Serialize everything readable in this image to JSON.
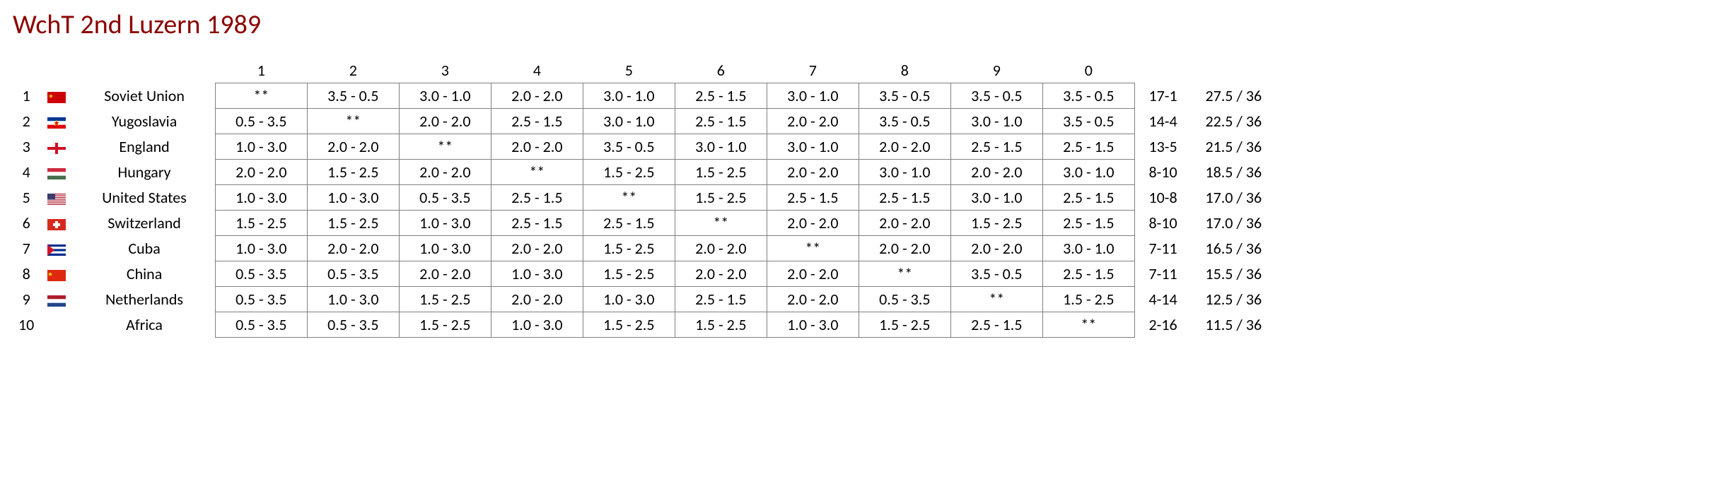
{
  "title": "WchT 2nd Luzern   1989",
  "title_color": "#8b0000",
  "diagonal_marker": "**",
  "column_headers": [
    "1",
    "2",
    "3",
    "4",
    "5",
    "6",
    "7",
    "8",
    "9",
    "0"
  ],
  "teams": [
    {
      "rank": "1",
      "flag": "soviet",
      "name": "Soviet Union",
      "results": [
        "**",
        "3.5 - 0.5",
        "3.0 - 1.0",
        "2.0 - 2.0",
        "3.0 - 1.0",
        "2.5 - 1.5",
        "3.0 - 1.0",
        "3.5 - 0.5",
        "3.5 - 0.5",
        "3.5 - 0.5"
      ],
      "record": "17-1",
      "score": "27.5 / 36"
    },
    {
      "rank": "2",
      "flag": "yugoslavia",
      "name": "Yugoslavia",
      "results": [
        "0.5 - 3.5",
        "**",
        "2.0 - 2.0",
        "2.5 - 1.5",
        "3.0 - 1.0",
        "2.5 - 1.5",
        "2.0 - 2.0",
        "3.5 - 0.5",
        "3.0 - 1.0",
        "3.5 - 0.5"
      ],
      "record": "14-4",
      "score": "22.5 / 36"
    },
    {
      "rank": "3",
      "flag": "england",
      "name": "England",
      "results": [
        "1.0 - 3.0",
        "2.0 - 2.0",
        "**",
        "2.0 - 2.0",
        "3.5 - 0.5",
        "3.0 - 1.0",
        "3.0 - 1.0",
        "2.0 - 2.0",
        "2.5 - 1.5",
        "2.5 - 1.5"
      ],
      "record": "13-5",
      "score": "21.5 / 36"
    },
    {
      "rank": "4",
      "flag": "hungary",
      "name": "Hungary",
      "results": [
        "2.0 - 2.0",
        "1.5 - 2.5",
        "2.0 - 2.0",
        "**",
        "1.5 - 2.5",
        "1.5 - 2.5",
        "2.0 - 2.0",
        "3.0 - 1.0",
        "2.0 - 2.0",
        "3.0 - 1.0"
      ],
      "record": "8-10",
      "score": "18.5 / 36"
    },
    {
      "rank": "5",
      "flag": "usa",
      "name": "United States",
      "results": [
        "1.0 - 3.0",
        "1.0 - 3.0",
        "0.5 - 3.5",
        "2.5 - 1.5",
        "**",
        "1.5 - 2.5",
        "2.5 - 1.5",
        "2.5 - 1.5",
        "3.0 - 1.0",
        "2.5 - 1.5"
      ],
      "record": "10-8",
      "score": "17.0 / 36"
    },
    {
      "rank": "6",
      "flag": "switzerland",
      "name": "Switzerland",
      "results": [
        "1.5 - 2.5",
        "1.5 - 2.5",
        "1.0 - 3.0",
        "2.5 - 1.5",
        "2.5 - 1.5",
        "**",
        "2.0 - 2.0",
        "2.0 - 2.0",
        "1.5 - 2.5",
        "2.5 - 1.5"
      ],
      "record": "8-10",
      "score": "17.0 / 36"
    },
    {
      "rank": "7",
      "flag": "cuba",
      "name": "Cuba",
      "results": [
        "1.0 - 3.0",
        "2.0 - 2.0",
        "1.0 - 3.0",
        "2.0 - 2.0",
        "1.5 - 2.5",
        "2.0 - 2.0",
        "**",
        "2.0 - 2.0",
        "2.0 - 2.0",
        "3.0 - 1.0"
      ],
      "record": "7-11",
      "score": "16.5 / 36"
    },
    {
      "rank": "8",
      "flag": "china",
      "name": "China",
      "results": [
        "0.5 - 3.5",
        "0.5 - 3.5",
        "2.0 - 2.0",
        "1.0 - 3.0",
        "1.5 - 2.5",
        "2.0 - 2.0",
        "2.0 - 2.0",
        "**",
        "3.5 - 0.5",
        "2.5 - 1.5"
      ],
      "record": "7-11",
      "score": "15.5 / 36"
    },
    {
      "rank": "9",
      "flag": "netherlands",
      "name": "Netherlands",
      "results": [
        "0.5 - 3.5",
        "1.0 - 3.0",
        "1.5 - 2.5",
        "2.0 - 2.0",
        "1.0 - 3.0",
        "2.5 - 1.5",
        "2.0 - 2.0",
        "0.5 - 3.5",
        "**",
        "1.5 - 2.5"
      ],
      "record": "4-14",
      "score": "12.5 / 36"
    },
    {
      "rank": "10",
      "flag": "",
      "name": "Africa",
      "results": [
        "0.5 - 3.5",
        "0.5 - 3.5",
        "1.5 - 2.5",
        "1.0 - 3.0",
        "1.5 - 2.5",
        "1.5 - 2.5",
        "1.0 - 3.0",
        "1.5 - 2.5",
        "2.5 - 1.5",
        "**"
      ],
      "record": "2-16",
      "score": "11.5 / 36"
    }
  ],
  "flags": {
    "soviet": "<svg class='flag' viewBox='0 0 26 16'><rect width='26' height='16' fill='#cc0000'/><polygon points='5,3 6,5 8,5 6.5,6.5 7,8.5 5,7.5 3,8.5 3.5,6.5 2,5 4,5' fill='#ffcc00'/></svg>",
    "yugoslavia": "<svg class='flag' viewBox='0 0 26 16'><rect width='26' height='5.33' y='0' fill='#003893'/><rect width='26' height='5.33' y='5.33' fill='#ffffff'/><rect width='26' height='5.34' y='10.66' fill='#de0000'/><polygon points='13,4 14,7 17,7 14.5,9 15.5,12 13,10 10.5,12 11.5,9 9,7 12,7' fill='#de0000' stroke='#ffcc00' stroke-width='0.5'/></svg>",
    "england": "<svg class='flag' viewBox='0 0 26 16'><rect width='26' height='16' fill='#ffffff'/><rect x='11' width='4' height='16' fill='#ce1124'/><rect y='6' width='26' height='4' fill='#ce1124'/></svg>",
    "hungary": "<svg class='flag' viewBox='0 0 26 16'><rect width='26' height='5.33' y='0' fill='#cd2a3e'/><rect width='26' height='5.33' y='5.33' fill='#ffffff'/><rect width='26' height='5.34' y='10.66' fill='#436f4d'/></svg>",
    "usa": "<svg class='flag' viewBox='0 0 26 16'><rect width='26' height='16' fill='#b22234'/><rect y='1.23' width='26' height='1.23' fill='#fff'/><rect y='3.69' width='26' height='1.23' fill='#fff'/><rect y='6.15' width='26' height='1.23' fill='#fff'/><rect y='8.62' width='26' height='1.23' fill='#fff'/><rect y='11.08' width='26' height='1.23' fill='#fff'/><rect y='13.54' width='26' height='1.23' fill='#fff'/><rect width='11' height='8.6' fill='#3c3b6e'/></svg>",
    "switzerland": "<svg class='flag' viewBox='0 0 26 16'><rect width='26' height='16' fill='#d52b1e'/><rect x='11' y='3' width='4' height='10' fill='#fff'/><rect x='8' y='6' width='10' height='4' fill='#fff'/></svg>",
    "cuba": "<svg class='flag' viewBox='0 0 26 16'><rect width='26' height='3.2' y='0' fill='#002a8f'/><rect width='26' height='3.2' y='3.2' fill='#fff'/><rect width='26' height='3.2' y='6.4' fill='#002a8f'/><rect width='26' height='3.2' y='9.6' fill='#fff'/><rect width='26' height='3.2' y='12.8' fill='#002a8f'/><polygon points='0,0 10,8 0,16' fill='#cf142b'/></svg>",
    "china": "<svg class='flag' viewBox='0 0 26 16'><rect width='26' height='16' fill='#de2910'/><polygon points='4,3 5,5 7,5 5.5,6.5 6,8.5 4,7.5 2,8.5 2.5,6.5 1,5 3,5' fill='#ffde00'/></svg>",
    "netherlands": "<svg class='flag' viewBox='0 0 26 16'><rect width='26' height='5.33' y='0' fill='#ae1c28'/><rect width='26' height='5.33' y='5.33' fill='#ffffff'/><rect width='26' height='5.34' y='10.66' fill='#21468b'/></svg>"
  }
}
